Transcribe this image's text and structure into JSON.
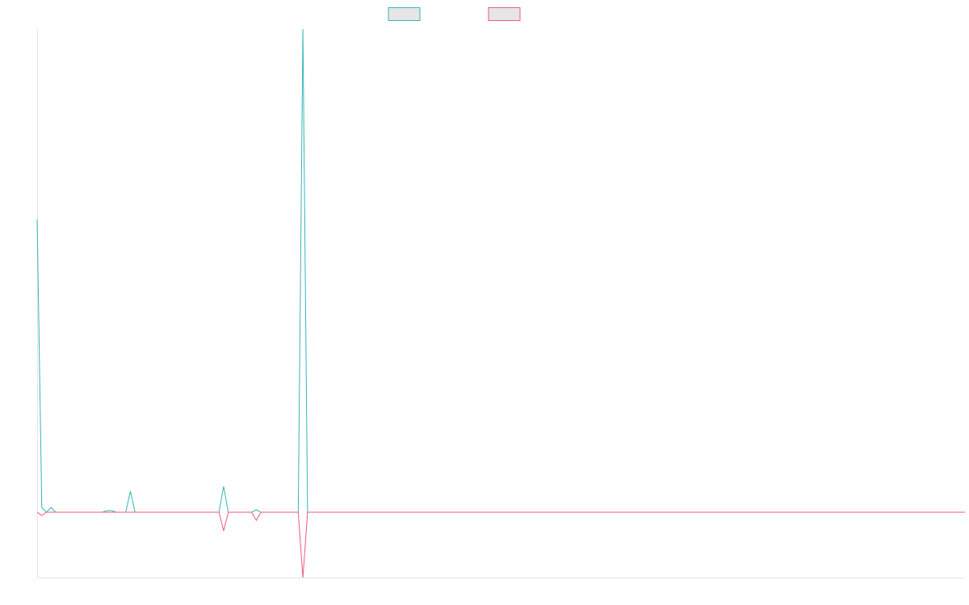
{
  "chart_data": {
    "type": "line",
    "series": [
      {
        "color": "#36b5b9",
        "fill": "#e6e6e6",
        "values": [
          363,
          6,
          0,
          6,
          0,
          0,
          0,
          0,
          0,
          0,
          0,
          0,
          0,
          0,
          0,
          2,
          2,
          0,
          0,
          0,
          26,
          0,
          0,
          0,
          0,
          0,
          0,
          0,
          0,
          0,
          0,
          0,
          0,
          0,
          0,
          0,
          0,
          0,
          0,
          0,
          32,
          0,
          0,
          0,
          0,
          0,
          0,
          3,
          0,
          0,
          0,
          0,
          0,
          0,
          0,
          0,
          0,
          599,
          0,
          0,
          0,
          0,
          0,
          0,
          0,
          0,
          0,
          0,
          0,
          0,
          0,
          0,
          0,
          0,
          0,
          0,
          0,
          0,
          0,
          0,
          0,
          0,
          0,
          0,
          0,
          0,
          0,
          0,
          0,
          0,
          0,
          0,
          0,
          0,
          0,
          0,
          0,
          0,
          0,
          0,
          0,
          0,
          0,
          0,
          0,
          0,
          0,
          0,
          0,
          0,
          0,
          0,
          0,
          0,
          0,
          0,
          0,
          0,
          0,
          0,
          0,
          0,
          0,
          0,
          0,
          0,
          0,
          0,
          0,
          0,
          0,
          0,
          0,
          0,
          0,
          0,
          0,
          0,
          0,
          0,
          0,
          0,
          0,
          0,
          0,
          0,
          0,
          0,
          0,
          0,
          0,
          0,
          0,
          0,
          0,
          0,
          0,
          0,
          0,
          0,
          0,
          0,
          0,
          0,
          0,
          0,
          0,
          0,
          0,
          0,
          0,
          0,
          0,
          0,
          0,
          0,
          0,
          0,
          0,
          0,
          0,
          0,
          0,
          0,
          0,
          0,
          0,
          0,
          0,
          0,
          0,
          0,
          0,
          0,
          0,
          0,
          0,
          0,
          0,
          0
        ]
      },
      {
        "color": "#f0587a",
        "fill": "#e6e6e6",
        "values": [
          0,
          -4,
          0,
          0,
          0,
          0,
          0,
          0,
          0,
          0,
          0,
          0,
          0,
          0,
          0,
          0,
          0,
          0,
          0,
          0,
          0,
          0,
          0,
          0,
          0,
          0,
          0,
          0,
          0,
          0,
          0,
          0,
          0,
          0,
          0,
          0,
          0,
          0,
          0,
          0,
          -23,
          0,
          0,
          0,
          0,
          0,
          0,
          -10,
          0,
          0,
          0,
          0,
          0,
          0,
          0,
          0,
          0,
          -81,
          0,
          0,
          0,
          0,
          0,
          0,
          0,
          0,
          0,
          0,
          0,
          0,
          0,
          0,
          0,
          0,
          0,
          0,
          0,
          0,
          0,
          0,
          0,
          0,
          0,
          0,
          0,
          0,
          0,
          0,
          0,
          0,
          0,
          0,
          0,
          0,
          0,
          0,
          0,
          0,
          0,
          0,
          0,
          0,
          0,
          0,
          0,
          0,
          0,
          0,
          0,
          0,
          0,
          0,
          0,
          0,
          0,
          0,
          0,
          0,
          0,
          0,
          0,
          0,
          0,
          0,
          0,
          0,
          0,
          0,
          0,
          0,
          0,
          0,
          0,
          0,
          0,
          0,
          0,
          0,
          0,
          0,
          0,
          0,
          0,
          0,
          0,
          0,
          0,
          0,
          0,
          0,
          0,
          0,
          0,
          0,
          0,
          0,
          0,
          0,
          0,
          0,
          0,
          0,
          0,
          0,
          0,
          0,
          0,
          0,
          0,
          0,
          0,
          0,
          0,
          0,
          0,
          0,
          0,
          0,
          0,
          0,
          0,
          0,
          0,
          0,
          0,
          0,
          0,
          0,
          0,
          0,
          0,
          0,
          0,
          0,
          0,
          0,
          0,
          0,
          0,
          0
        ]
      }
    ],
    "ylim": [
      -81,
      599
    ]
  }
}
